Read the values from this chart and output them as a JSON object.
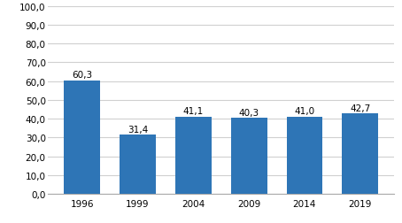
{
  "categories": [
    "1996",
    "1999",
    "2004",
    "2009",
    "2014",
    "2019"
  ],
  "values": [
    60.3,
    31.4,
    41.1,
    40.3,
    41.0,
    42.7
  ],
  "bar_color": "#2E75B6",
  "ylim": [
    0,
    100
  ],
  "yticks": [
    0.0,
    10.0,
    20.0,
    30.0,
    40.0,
    50.0,
    60.0,
    70.0,
    80.0,
    90.0,
    100.0
  ],
  "ytick_labels": [
    "0,0",
    "10,0",
    "20,0",
    "30,0",
    "40,0",
    "50,0",
    "60,0",
    "70,0",
    "80,0",
    "90,0",
    "100,0"
  ],
  "background_color": "#ffffff",
  "grid_color": "#d0d0d0",
  "label_fontsize": 7.5,
  "bar_label_fontsize": 7.5,
  "bar_width": 0.65
}
